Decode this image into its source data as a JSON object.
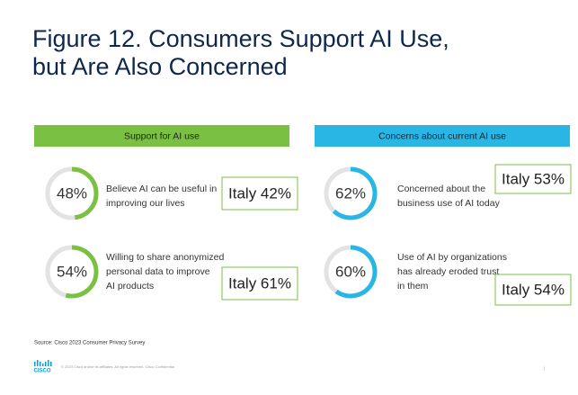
{
  "title": [
    "Figure 12. Consumers Support AI Use,",
    "but Are Also Concerned"
  ],
  "panels": [
    {
      "heading": "Support for AI use",
      "color": "#7ac143",
      "items": [
        {
          "value": 48,
          "value_label": "48%",
          "text": [
            "Believe AI can be useful in",
            "improving our lives"
          ],
          "country": "Italy 42%"
        },
        {
          "value": 54,
          "value_label": "54%",
          "text": [
            "Willing to share anonymized",
            "personal data to improve",
            "AI products"
          ],
          "country": "Italy 61%"
        }
      ]
    },
    {
      "heading": "Concerns about current AI use",
      "color": "#29b6e5",
      "items": [
        {
          "value": 62,
          "value_label": "62%",
          "text": [
            "Concerned about the",
            "business use of AI today"
          ],
          "country": "Italy 53%"
        },
        {
          "value": 60,
          "value_label": "60%",
          "text": [
            "Use of AI by organizations",
            "has already eroded trust",
            "in them"
          ],
          "country": "Italy 54%"
        }
      ]
    }
  ],
  "source": "Source: Cisco 2023 Consumer Privacy Survey",
  "logo": "CISCO",
  "footer": "© 2023 Cisco and/or its affiliates. All rights reserved. Cisco Confidential",
  "page": "1"
}
